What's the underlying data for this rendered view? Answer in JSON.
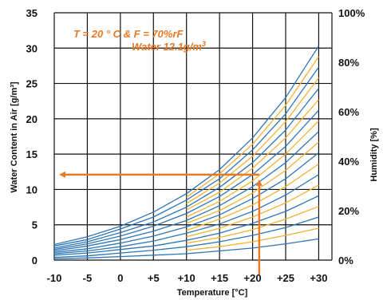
{
  "chart_data": {
    "type": "line",
    "title": "",
    "xlabel": "Temperature [°C]",
    "ylabel": "Water Content in Air [g/m³]",
    "y2label": "Humidity [%]",
    "xlim": [
      -10,
      32
    ],
    "ylim": [
      0,
      35
    ],
    "x_ticks": [
      "-10",
      "-5",
      "0",
      "+5",
      "+10",
      "+15",
      "+20",
      "+25",
      "+30"
    ],
    "x_tick_values": [
      -10,
      -5,
      0,
      5,
      10,
      15,
      20,
      25,
      30
    ],
    "y_ticks": [
      "0",
      "5",
      "10",
      "15",
      "20",
      "25",
      "30",
      "35"
    ],
    "y_tick_values": [
      0,
      5,
      10,
      15,
      20,
      25,
      30,
      35
    ],
    "y2_ticks": [
      "0%",
      "20%",
      "40%",
      "60%",
      "80%",
      "100%"
    ],
    "y2_tick_values": [
      0,
      20,
      40,
      60,
      80,
      100
    ],
    "grid": true,
    "colors": {
      "blue": "#2e75b6",
      "yellow": "#f2b233",
      "orange": "#e97a24",
      "grid": "#111111"
    },
    "series": [
      {
        "humidity": 10,
        "color": "blue",
        "x": [
          -10,
          -5,
          0,
          5,
          10,
          15,
          20,
          25,
          30
        ],
        "values": [
          0.2,
          0.3,
          0.5,
          0.7,
          0.9,
          1.3,
          1.7,
          2.3,
          3.0
        ]
      },
      {
        "humidity": 20,
        "color": "blue",
        "x": [
          -10,
          -5,
          0,
          5,
          10,
          15,
          20,
          25,
          30
        ],
        "values": [
          0.4,
          0.6,
          1.0,
          1.4,
          1.9,
          2.6,
          3.5,
          4.6,
          6.1
        ]
      },
      {
        "humidity": 30,
        "color": "blue",
        "x": [
          -10,
          -5,
          0,
          5,
          10,
          15,
          20,
          25,
          30
        ],
        "values": [
          0.7,
          1.0,
          1.5,
          2.0,
          2.8,
          3.8,
          5.2,
          6.9,
          9.1
        ]
      },
      {
        "humidity": 40,
        "color": "blue",
        "x": [
          -10,
          -5,
          0,
          5,
          10,
          15,
          20,
          25,
          30
        ],
        "values": [
          0.9,
          1.3,
          1.9,
          2.7,
          3.8,
          5.1,
          6.9,
          9.2,
          12.1
        ]
      },
      {
        "humidity": 50,
        "color": "blue",
        "x": [
          -10,
          -5,
          0,
          5,
          10,
          15,
          20,
          25,
          30
        ],
        "values": [
          1.1,
          1.6,
          2.4,
          3.4,
          4.7,
          6.4,
          8.7,
          11.5,
          15.2
        ]
      },
      {
        "humidity": 60,
        "color": "blue",
        "x": [
          -10,
          -5,
          0,
          5,
          10,
          15,
          20,
          25,
          30
        ],
        "values": [
          1.3,
          2.0,
          2.9,
          4.1,
          5.6,
          7.7,
          10.4,
          13.8,
          18.2
        ]
      },
      {
        "humidity": 70,
        "color": "blue",
        "x": [
          -10,
          -5,
          0,
          5,
          10,
          15,
          20,
          25,
          30
        ],
        "values": [
          1.5,
          2.3,
          3.4,
          4.8,
          6.6,
          9.0,
          12.1,
          16.1,
          21.2
        ]
      },
      {
        "humidity": 80,
        "color": "blue",
        "x": [
          -10,
          -5,
          0,
          5,
          10,
          15,
          20,
          25,
          30
        ],
        "values": [
          1.7,
          2.6,
          3.9,
          5.4,
          7.5,
          10.3,
          13.8,
          18.4,
          24.3
        ]
      },
      {
        "humidity": 90,
        "color": "blue",
        "x": [
          -10,
          -5,
          0,
          5,
          10,
          15,
          20,
          25,
          30
        ],
        "values": [
          2.0,
          2.9,
          4.4,
          6.1,
          8.5,
          11.5,
          15.6,
          20.7,
          27.3
        ]
      },
      {
        "humidity": 100,
        "color": "blue",
        "x": [
          -10,
          -5,
          0,
          5,
          10,
          15,
          20,
          25,
          30
        ],
        "values": [
          2.2,
          3.3,
          4.8,
          6.8,
          9.4,
          12.8,
          17.3,
          23.0,
          30.3
        ]
      },
      {
        "humidity": 15,
        "color": "yellow",
        "x": [
          10,
          15,
          20,
          25,
          30
        ],
        "values": [
          1.4,
          1.9,
          2.6,
          3.5,
          4.5
        ]
      },
      {
        "humidity": 25,
        "color": "yellow",
        "x": [
          10,
          15,
          20,
          25,
          30
        ],
        "values": [
          2.4,
          3.2,
          4.3,
          5.8,
          7.6
        ]
      },
      {
        "humidity": 35,
        "color": "yellow",
        "x": [
          10,
          15,
          20,
          25,
          30
        ],
        "values": [
          3.3,
          4.5,
          6.1,
          8.1,
          10.6
        ]
      },
      {
        "humidity": 45,
        "color": "yellow",
        "x": [
          10,
          15,
          20,
          25,
          30
        ],
        "values": [
          4.2,
          5.8,
          7.8,
          10.4,
          13.6
        ]
      },
      {
        "humidity": 55,
        "color": "yellow",
        "x": [
          10,
          15,
          20,
          25,
          30
        ],
        "values": [
          5.2,
          7.0,
          9.5,
          12.7,
          16.7
        ]
      },
      {
        "humidity": 65,
        "color": "yellow",
        "x": [
          10,
          15,
          20,
          25,
          30
        ],
        "values": [
          6.1,
          8.3,
          11.2,
          15.0,
          19.7
        ]
      },
      {
        "humidity": 75,
        "color": "yellow",
        "x": [
          10,
          15,
          20,
          25,
          30
        ],
        "values": [
          7.1,
          9.6,
          13.0,
          17.3,
          22.7
        ]
      },
      {
        "humidity": 85,
        "color": "yellow",
        "x": [
          10,
          15,
          20,
          25,
          30
        ],
        "values": [
          8.0,
          10.9,
          14.7,
          19.6,
          25.8
        ]
      },
      {
        "humidity": 95,
        "color": "yellow",
        "x": [
          10,
          15,
          20,
          25,
          30
        ],
        "values": [
          8.9,
          12.2,
          16.4,
          21.9,
          28.8
        ]
      }
    ],
    "annotation": {
      "line1": "T = 20 ° C & F = 70%rF",
      "line2_prefix": "Water 12.1g/m",
      "line2_sup": "3",
      "color": "orange",
      "arrow": {
        "x": 21,
        "y": 12.1,
        "humidity": 70
      }
    }
  }
}
